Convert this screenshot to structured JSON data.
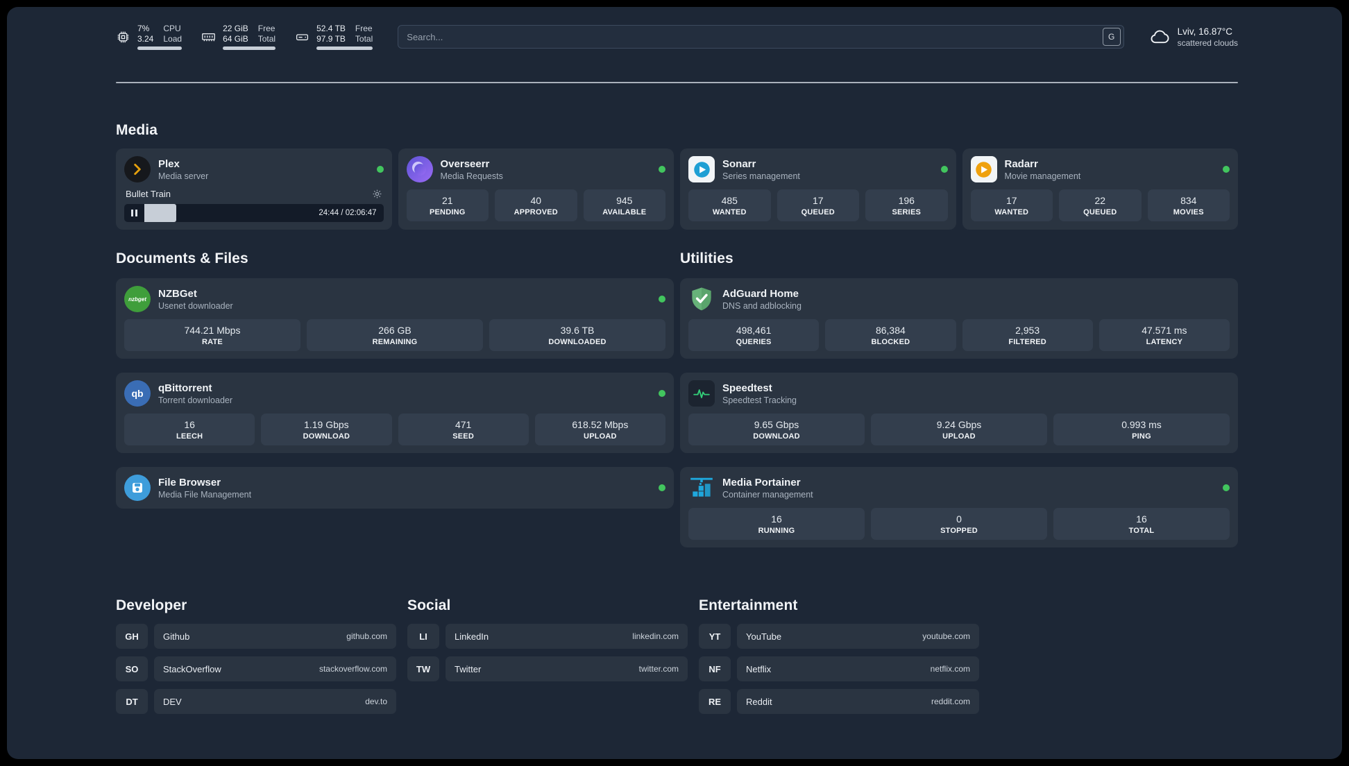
{
  "header": {
    "cpu": {
      "usage": "7%",
      "load": "3.24",
      "label1": "CPU",
      "label2": "Load"
    },
    "ram": {
      "value1": "22 GiB",
      "value2": "64 GiB",
      "label1": "Free",
      "label2": "Total"
    },
    "disk": {
      "value1": "52.4 TB",
      "value2": "97.9 TB",
      "label1": "Free",
      "label2": "Total"
    },
    "search": {
      "placeholder": "Search...",
      "engine_button": "G"
    },
    "weather": {
      "location": "Lviv, 16.87°C",
      "condition": "scattered clouds"
    }
  },
  "media": {
    "title": "Media",
    "plex": {
      "name": "Plex",
      "desc": "Media server",
      "now_playing": "Bullet Train",
      "time": "24:44 / 02:06:47",
      "progress_percent": 19
    },
    "overseerr": {
      "name": "Overseerr",
      "desc": "Media Requests",
      "stats": [
        {
          "value": "21",
          "label": "PENDING"
        },
        {
          "value": "40",
          "label": "APPROVED"
        },
        {
          "value": "945",
          "label": "AVAILABLE"
        }
      ]
    },
    "sonarr": {
      "name": "Sonarr",
      "desc": "Series management",
      "stats": [
        {
          "value": "485",
          "label": "WANTED"
        },
        {
          "value": "17",
          "label": "QUEUED"
        },
        {
          "value": "196",
          "label": "SERIES"
        }
      ]
    },
    "radarr": {
      "name": "Radarr",
      "desc": "Movie management",
      "stats": [
        {
          "value": "17",
          "label": "WANTED"
        },
        {
          "value": "22",
          "label": "QUEUED"
        },
        {
          "value": "834",
          "label": "MOVIES"
        }
      ]
    }
  },
  "documents": {
    "title": "Documents & Files",
    "nzbget": {
      "name": "NZBGet",
      "desc": "Usenet downloader",
      "icon_text": "nzbget",
      "stats": [
        {
          "value": "744.21 Mbps",
          "label": "RATE"
        },
        {
          "value": "266 GB",
          "label": "REMAINING"
        },
        {
          "value": "39.6 TB",
          "label": "DOWNLOADED"
        }
      ]
    },
    "qbittorrent": {
      "name": "qBittorrent",
      "desc": "Torrent downloader",
      "icon_text": "qb",
      "stats": [
        {
          "value": "16",
          "label": "LEECH"
        },
        {
          "value": "1.19 Gbps",
          "label": "DOWNLOAD"
        },
        {
          "value": "471",
          "label": "SEED"
        },
        {
          "value": "618.52 Mbps",
          "label": "UPLOAD"
        }
      ]
    },
    "filebrowser": {
      "name": "File Browser",
      "desc": "Media File Management"
    }
  },
  "utilities": {
    "title": "Utilities",
    "adguard": {
      "name": "AdGuard Home",
      "desc": "DNS and adblocking",
      "stats": [
        {
          "value": "498,461",
          "label": "QUERIES"
        },
        {
          "value": "86,384",
          "label": "BLOCKED"
        },
        {
          "value": "2,953",
          "label": "FILTERED"
        },
        {
          "value": "47.571 ms",
          "label": "LATENCY"
        }
      ]
    },
    "speedtest": {
      "name": "Speedtest",
      "desc": "Speedtest Tracking",
      "stats": [
        {
          "value": "9.65 Gbps",
          "label": "DOWNLOAD"
        },
        {
          "value": "9.24 Gbps",
          "label": "UPLOAD"
        },
        {
          "value": "0.993 ms",
          "label": "PING"
        }
      ]
    },
    "portainer": {
      "name": "Media Portainer",
      "desc": "Container management",
      "stats": [
        {
          "value": "16",
          "label": "RUNNING"
        },
        {
          "value": "0",
          "label": "STOPPED"
        },
        {
          "value": "16",
          "label": "TOTAL"
        }
      ]
    }
  },
  "bookmarks": {
    "developer": {
      "title": "Developer",
      "items": [
        {
          "abbr": "GH",
          "name": "Github",
          "url": "github.com"
        },
        {
          "abbr": "SO",
          "name": "StackOverflow",
          "url": "stackoverflow.com"
        },
        {
          "abbr": "DT",
          "name": "DEV",
          "url": "dev.to"
        }
      ]
    },
    "social": {
      "title": "Social",
      "items": [
        {
          "abbr": "LI",
          "name": "LinkedIn",
          "url": "linkedin.com"
        },
        {
          "abbr": "TW",
          "name": "Twitter",
          "url": "twitter.com"
        }
      ]
    },
    "entertainment": {
      "title": "Entertainment",
      "items": [
        {
          "abbr": "YT",
          "name": "YouTube",
          "url": "youtube.com"
        },
        {
          "abbr": "NF",
          "name": "Netflix",
          "url": "netflix.com"
        },
        {
          "abbr": "RE",
          "name": "Reddit",
          "url": "reddit.com"
        }
      ]
    }
  },
  "colors": {
    "status_online": "#42c55e",
    "accent_plex": "#e5a00d"
  }
}
